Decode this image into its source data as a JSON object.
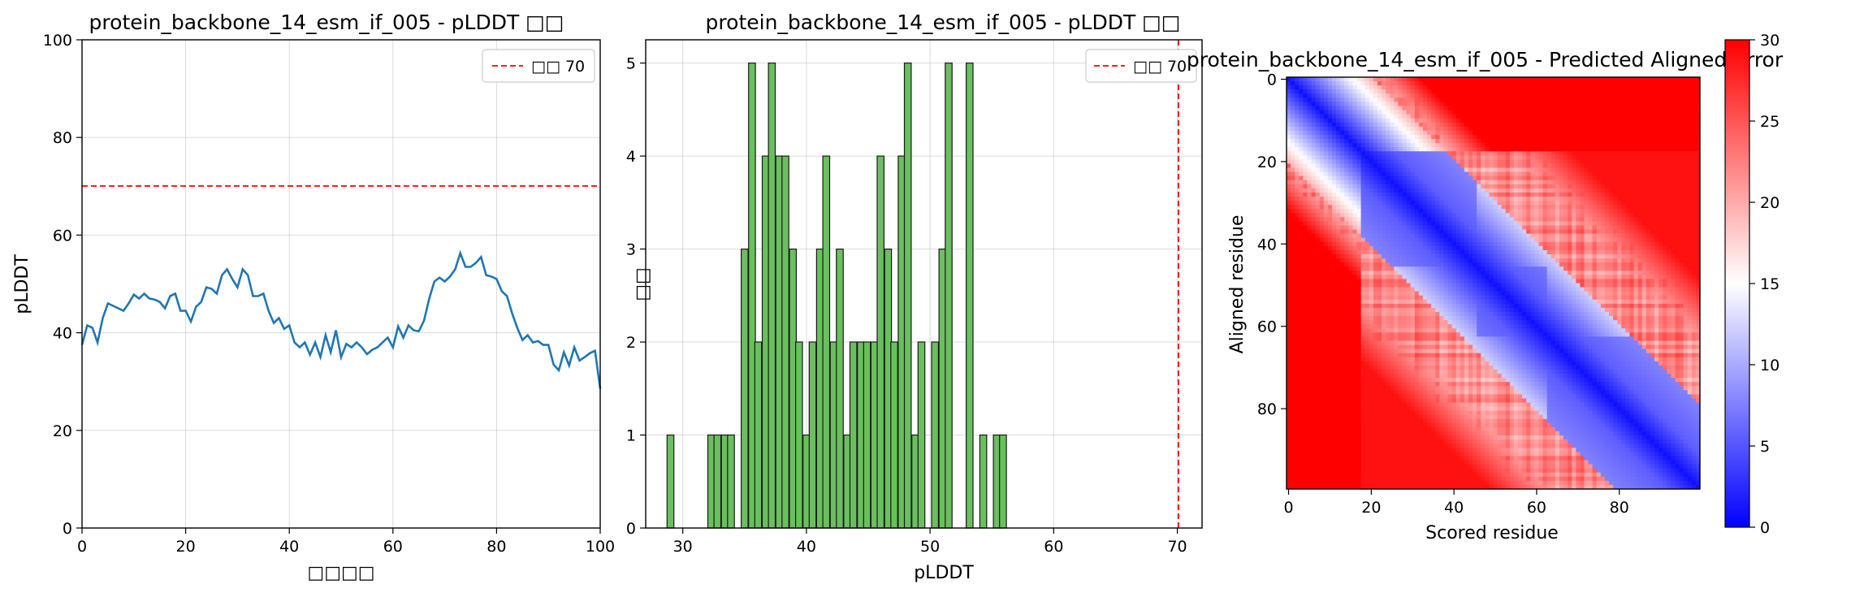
{
  "chart_data": [
    {
      "type": "line",
      "title": "protein_backbone_14_esm_if_005 - pLDDT □□",
      "xlabel": "□□□□",
      "ylabel": "pLDDT",
      "xlim": [
        0,
        100
      ],
      "ylim": [
        0,
        100
      ],
      "xticks": [
        "0",
        "20",
        "40",
        "60",
        "80",
        "100"
      ],
      "yticks": [
        "0",
        "20",
        "40",
        "60",
        "80",
        "100"
      ],
      "grid": true,
      "legend": {
        "position": "top-right",
        "entries": [
          "□□ 70"
        ]
      },
      "series": [
        {
          "color": "#1f77b4",
          "x": [
            0,
            1,
            2,
            3,
            4,
            5,
            6,
            7,
            8,
            9,
            10,
            11,
            12,
            13,
            14,
            15,
            16,
            17,
            18,
            19,
            20,
            21,
            22,
            23,
            24,
            25,
            26,
            27,
            28,
            29,
            30,
            31,
            32,
            33,
            34,
            35,
            36,
            37,
            38,
            39,
            40,
            41,
            42,
            43,
            44,
            45,
            46,
            47,
            48,
            49,
            50,
            51,
            52,
            53,
            54,
            55,
            56,
            57,
            58,
            59,
            60,
            61,
            62,
            63,
            64,
            65,
            66,
            67,
            68,
            69,
            70,
            71,
            72,
            73,
            74,
            75,
            76,
            77,
            78,
            79,
            80,
            81,
            82,
            83,
            84,
            85,
            86,
            87,
            88,
            89,
            90,
            91,
            92,
            93,
            94,
            95,
            96,
            97,
            98,
            99,
            100
          ],
          "values": [
            37.5,
            41.5,
            41.0,
            38.0,
            43.0,
            46.0,
            45.5,
            45.0,
            44.5,
            46.0,
            47.8,
            47.0,
            48.0,
            47.0,
            46.8,
            46.3,
            45.0,
            47.5,
            48.0,
            44.5,
            44.5,
            42.3,
            45.3,
            46.3,
            49.3,
            49.0,
            48.0,
            51.8,
            53.0,
            51.0,
            49.3,
            53.0,
            51.8,
            47.5,
            47.5,
            48.0,
            44.5,
            42.0,
            43.0,
            40.8,
            41.5,
            38.0,
            37.0,
            38.0,
            35.5,
            38.0,
            35.0,
            39.5,
            36.0,
            40.5,
            35.0,
            37.7,
            37.0,
            38.0,
            37.0,
            35.6,
            36.5,
            37.0,
            38.0,
            39.0,
            37.0,
            41.3,
            39.0,
            41.5,
            40.5,
            40.3,
            42.5,
            47.0,
            50.5,
            51.3,
            50.5,
            51.5,
            53.0,
            56.3,
            53.5,
            53.5,
            54.3,
            55.5,
            51.8,
            51.5,
            51.0,
            48.5,
            47.5,
            44.0,
            41.0,
            38.5,
            39.5,
            38.0,
            38.3,
            37.5,
            37.5,
            33.5,
            32.3,
            36.0,
            33.3,
            37.0,
            34.3,
            35.0,
            35.8,
            36.3,
            28.5
          ]
        }
      ],
      "reference_line": {
        "y": 70,
        "label": "□□ 70",
        "color": "#ff0000"
      }
    },
    {
      "type": "bar",
      "title": "protein_backbone_14_esm_if_005 - pLDDT □□",
      "xlabel": "pLDDT",
      "ylabel": "□□",
      "xlim": [
        27,
        72
      ],
      "ylim": [
        0,
        5.25
      ],
      "xticks": [
        "30",
        "40",
        "50",
        "60",
        "70"
      ],
      "yticks": [
        "0",
        "1",
        "2",
        "3",
        "4",
        "5"
      ],
      "grid": true,
      "legend": {
        "position": "top-right",
        "entries": [
          "□□ 70"
        ]
      },
      "bar_color": "#6abf5e",
      "bin_width": 0.55,
      "bins": [
        {
          "x": 29.0,
          "count": 1
        },
        {
          "x": 32.3,
          "count": 1
        },
        {
          "x": 32.8,
          "count": 1
        },
        {
          "x": 33.4,
          "count": 1
        },
        {
          "x": 33.9,
          "count": 1
        },
        {
          "x": 35.0,
          "count": 3
        },
        {
          "x": 35.6,
          "count": 5
        },
        {
          "x": 36.1,
          "count": 2
        },
        {
          "x": 36.7,
          "count": 4
        },
        {
          "x": 37.2,
          "count": 5
        },
        {
          "x": 37.8,
          "count": 4
        },
        {
          "x": 38.3,
          "count": 4
        },
        {
          "x": 38.9,
          "count": 3
        },
        {
          "x": 39.4,
          "count": 2
        },
        {
          "x": 40.0,
          "count": 1
        },
        {
          "x": 40.5,
          "count": 2
        },
        {
          "x": 41.1,
          "count": 3
        },
        {
          "x": 41.6,
          "count": 4
        },
        {
          "x": 42.2,
          "count": 2
        },
        {
          "x": 42.7,
          "count": 3
        },
        {
          "x": 43.3,
          "count": 1
        },
        {
          "x": 43.8,
          "count": 2
        },
        {
          "x": 44.4,
          "count": 2
        },
        {
          "x": 44.9,
          "count": 2
        },
        {
          "x": 45.5,
          "count": 2
        },
        {
          "x": 46.0,
          "count": 4
        },
        {
          "x": 46.6,
          "count": 3
        },
        {
          "x": 47.1,
          "count": 2
        },
        {
          "x": 47.7,
          "count": 4
        },
        {
          "x": 48.2,
          "count": 5
        },
        {
          "x": 48.8,
          "count": 1
        },
        {
          "x": 49.3,
          "count": 2
        },
        {
          "x": 50.4,
          "count": 2
        },
        {
          "x": 51.0,
          "count": 3
        },
        {
          "x": 51.5,
          "count": 5
        },
        {
          "x": 53.2,
          "count": 5
        },
        {
          "x": 54.3,
          "count": 1
        },
        {
          "x": 55.4,
          "count": 1
        },
        {
          "x": 55.9,
          "count": 1
        }
      ],
      "reference_line": {
        "x": 70,
        "label": "□□ 70",
        "color": "#ff0000"
      }
    },
    {
      "type": "heatmap",
      "title": "protein_backbone_14_esm_if_005 - Predicted Aligned Error",
      "xlabel": "Scored residue",
      "ylabel": "Aligned residue",
      "size": 100,
      "xticks": [
        "0",
        "20",
        "40",
        "60",
        "80"
      ],
      "yticks": [
        "0",
        "20",
        "40",
        "60",
        "80"
      ],
      "colormap": "bwr",
      "vmin": 0,
      "vmax": 30,
      "colorbar_ticks": [
        "0",
        "5",
        "10",
        "15",
        "20",
        "25",
        "30"
      ],
      "domains": [
        [
          0,
          17
        ],
        [
          18,
          45
        ],
        [
          46,
          62
        ],
        [
          63,
          99
        ]
      ],
      "colors": {
        "low": "#0000ff",
        "mid": "#ffffff",
        "high": "#ff0000"
      }
    }
  ]
}
